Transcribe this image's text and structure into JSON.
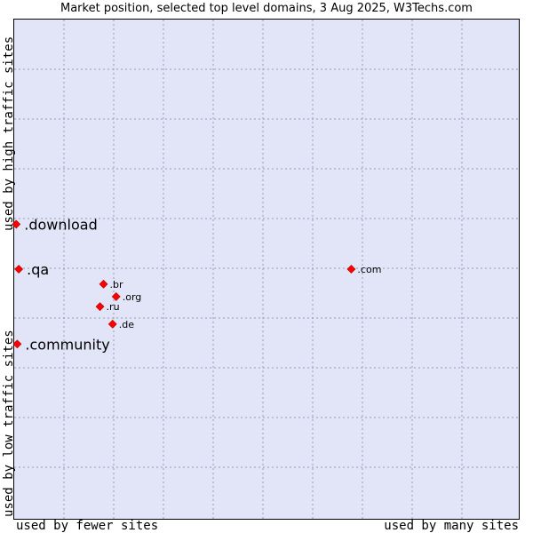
{
  "chart_data": {
    "type": "scatter",
    "title": "Market position, selected top level domains, 3 Aug 2025, W3Techs.com",
    "xlabel_left": "used by fewer sites",
    "xlabel_right": "used by many sites",
    "ylabel_low": "used by low traffic sites",
    "ylabel_high": "used by high traffic sites",
    "xlim": [
      0,
      100
    ],
    "ylim": [
      0,
      100
    ],
    "grid": true,
    "points": [
      {
        "label": ".download",
        "x": 0.4,
        "y": 59.0,
        "highlight": true
      },
      {
        "label": ".qa",
        "x": 0.9,
        "y": 50.0,
        "highlight": true
      },
      {
        "label": ".community",
        "x": 0.6,
        "y": 35.0,
        "highlight": true
      },
      {
        "label": ".com",
        "x": 66.8,
        "y": 50.0,
        "highlight": false
      },
      {
        "label": ".br",
        "x": 17.7,
        "y": 47.0,
        "highlight": false
      },
      {
        "label": ".org",
        "x": 20.2,
        "y": 44.5,
        "highlight": false
      },
      {
        "label": ".ru",
        "x": 17.0,
        "y": 42.5,
        "highlight": false
      },
      {
        "label": ".de",
        "x": 19.5,
        "y": 39.0,
        "highlight": false
      }
    ],
    "marker_color": "#ff0000",
    "grid_color": "#9a9ab0"
  }
}
